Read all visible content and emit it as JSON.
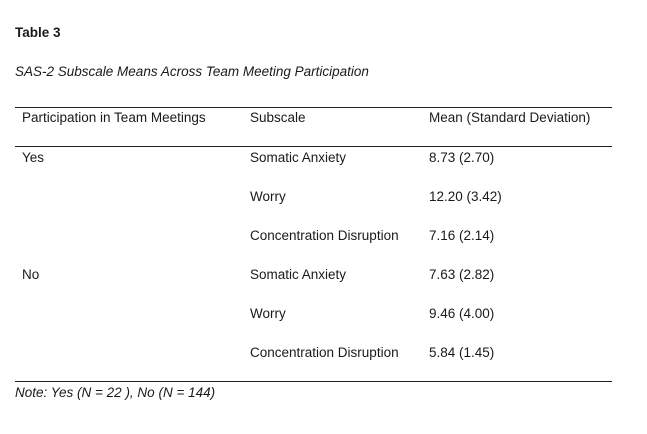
{
  "table": {
    "number": "Table 3",
    "title": "SAS-2 Subscale Means Across Team Meeting Participation",
    "headers": [
      "Participation in Team Meetings",
      "Subscale",
      "Mean (Standard Deviation)"
    ],
    "rows": [
      {
        "group": "Yes",
        "subscale": "Somatic Anxiety",
        "mean": "8.73 (2.70)"
      },
      {
        "group": "",
        "subscale": "Worry",
        "mean": "12.20 (3.42)"
      },
      {
        "group": "",
        "subscale": "Concentration Disruption",
        "mean": "7.16 (2.14)"
      },
      {
        "group": "No",
        "subscale": "Somatic Anxiety",
        "mean": "7.63 (2.82)"
      },
      {
        "group": "",
        "subscale": "Worry",
        "mean": "9.46 (4.00)"
      },
      {
        "group": "",
        "subscale": "Concentration Disruption",
        "mean": "5.84 (1.45)"
      }
    ],
    "note": "Note: Yes (N = 22 ), No (N = 144)"
  }
}
